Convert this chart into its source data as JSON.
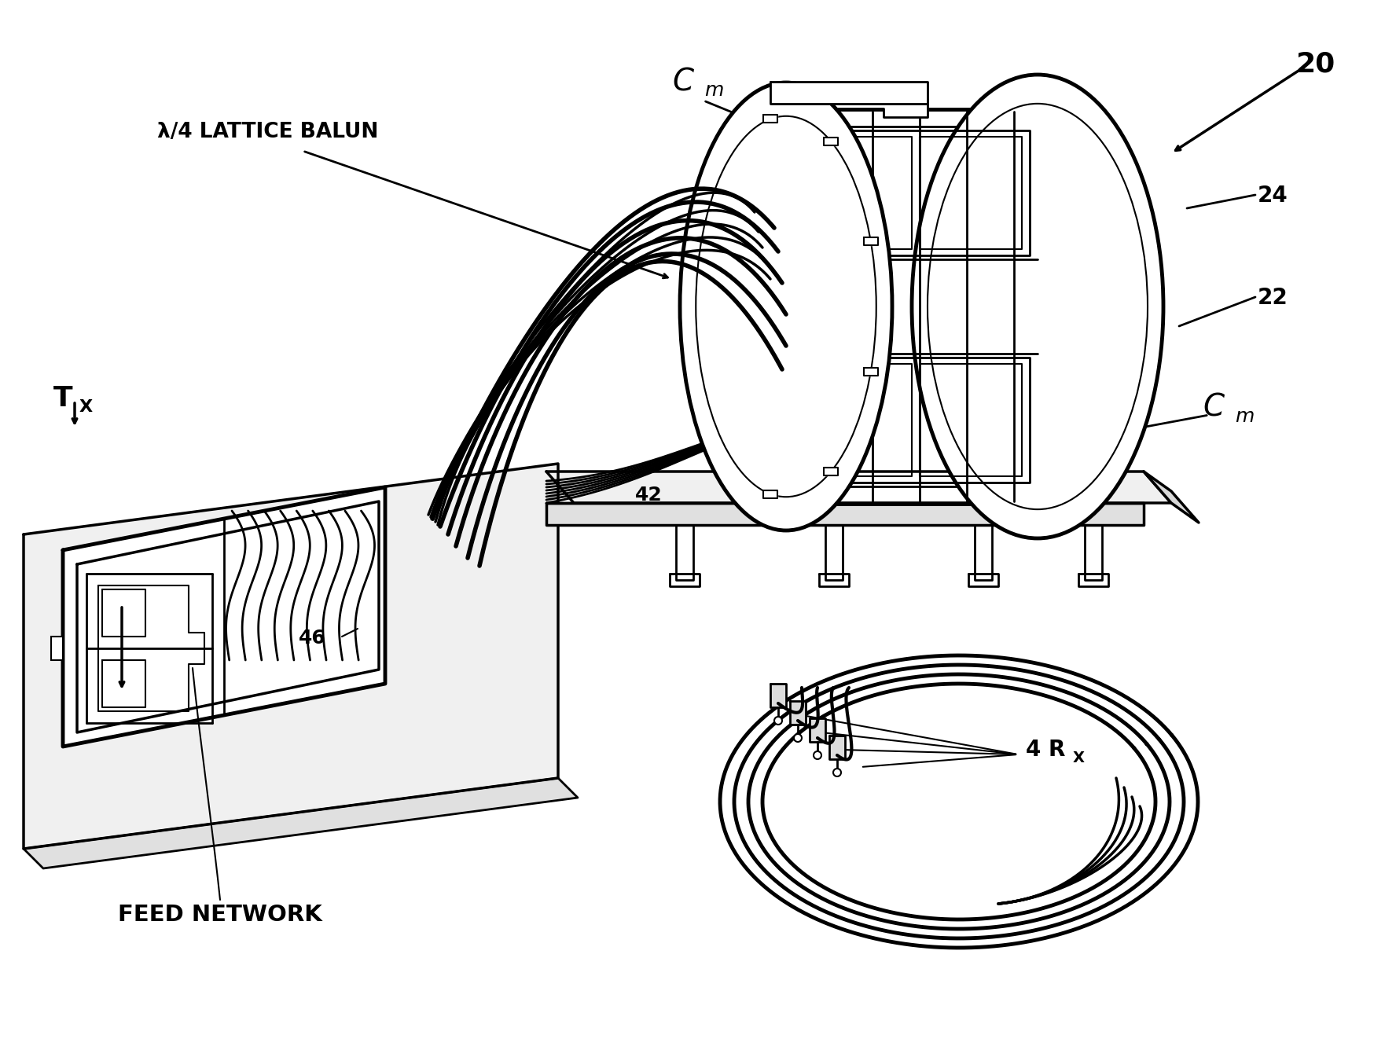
{
  "background_color": "#ffffff",
  "line_color": "#000000",
  "labels": {
    "cm_top": "C",
    "cm_top_sub": "m",
    "cm_bottom": "C",
    "cm_bottom_sub": "m",
    "lattice_balun": "λ/4 LATTICE BALUN",
    "ref_20": "20",
    "ref_22": "22",
    "ref_24": "24",
    "ref_42": "42",
    "ref_46": "46",
    "tx_main": "T",
    "tx_sub": "X",
    "rx_main": "4 R",
    "rx_sub": "X",
    "feed_network": "FEED NETWORK"
  },
  "figsize": [
    17.48,
    13.31
  ],
  "dpi": 100
}
